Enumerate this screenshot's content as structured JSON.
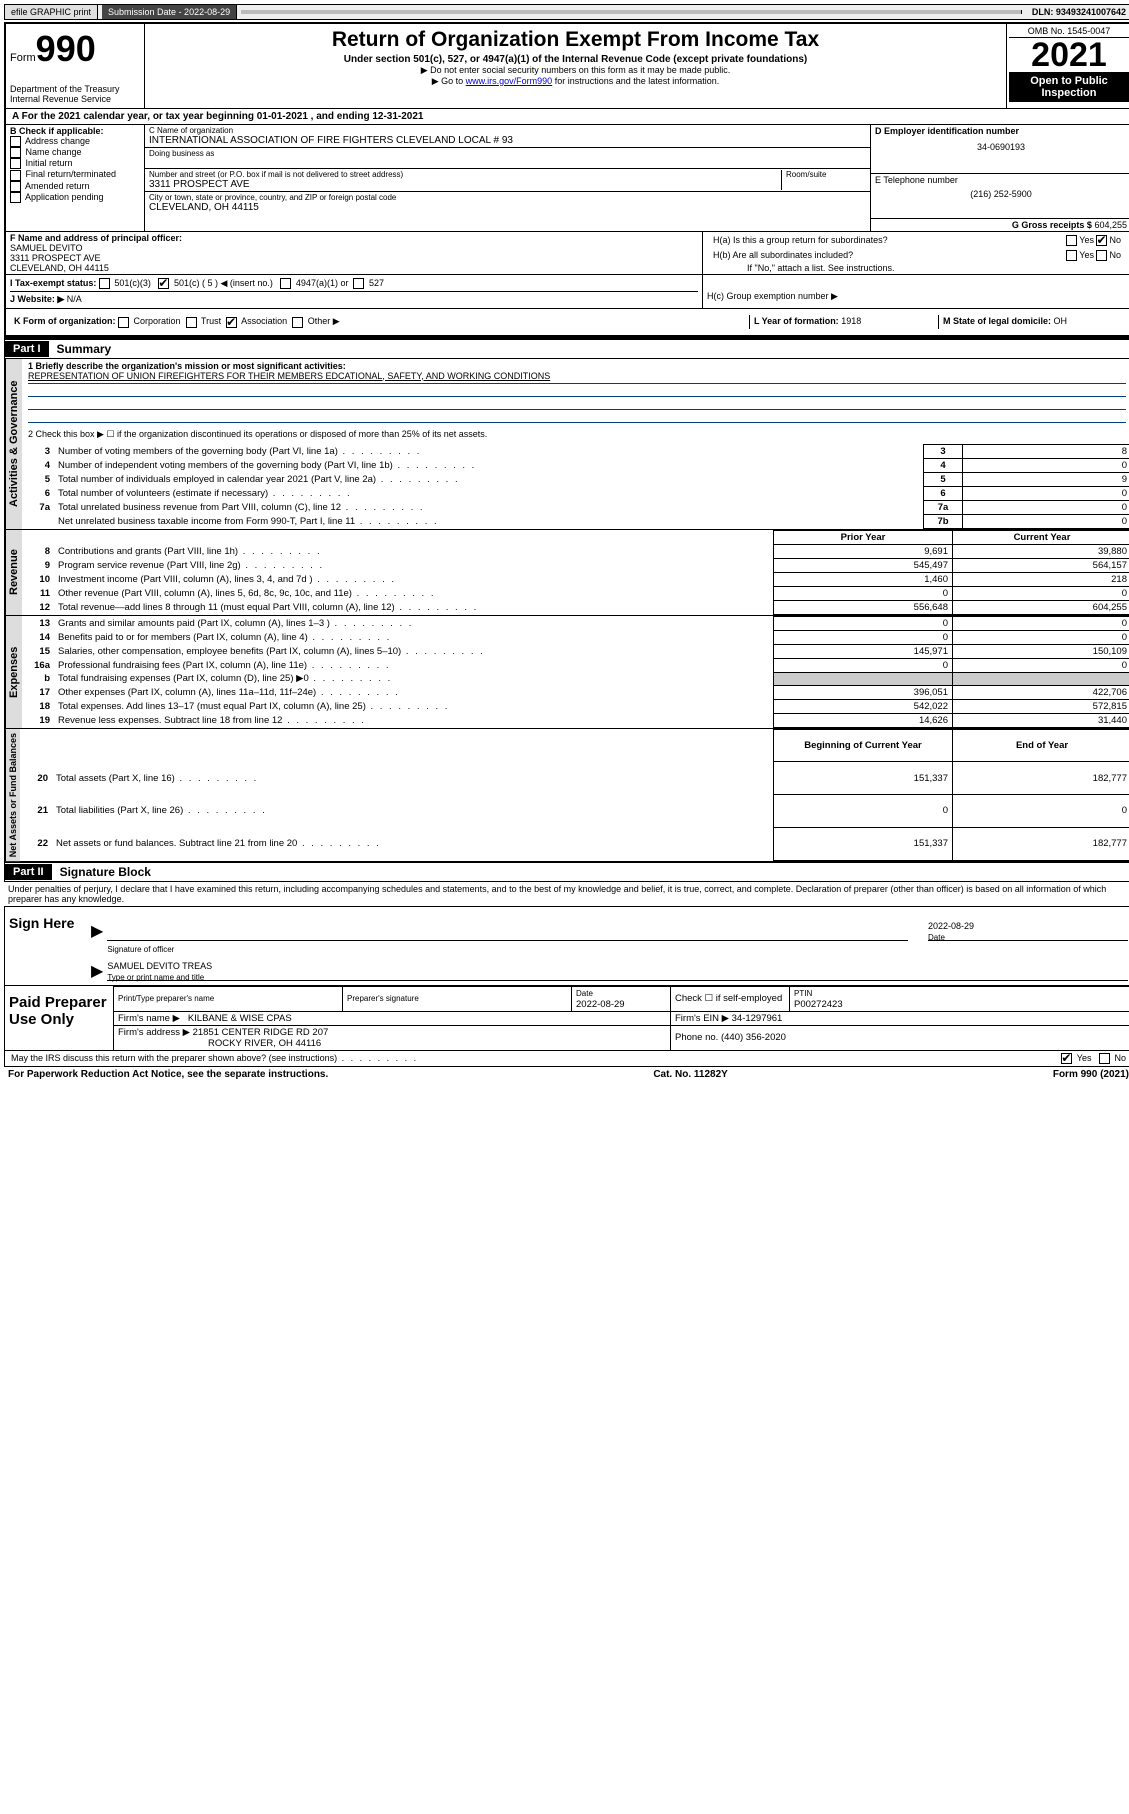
{
  "topbar": {
    "efile": "efile GRAPHIC print",
    "submission_label": "Submission Date - 2022-08-29",
    "dln": "DLN: 93493241007642"
  },
  "header": {
    "form_prefix": "Form",
    "form_number": "990",
    "dept": "Department of the Treasury",
    "irs": "Internal Revenue Service",
    "title": "Return of Organization Exempt From Income Tax",
    "subtitle": "Under section 501(c), 527, or 4947(a)(1) of the Internal Revenue Code (except private foundations)",
    "note1": "▶ Do not enter social security numbers on this form as it may be made public.",
    "note2_pre": "▶ Go to ",
    "note2_link": "www.irs.gov/Form990",
    "note2_post": " for instructions and the latest information.",
    "omb": "OMB No. 1545-0047",
    "year": "2021",
    "open": "Open to Public Inspection"
  },
  "line_a": "For the 2021 calendar year, or tax year beginning 01-01-2021   , and ending 12-31-2021",
  "section_b": {
    "header": "B Check if applicable:",
    "items": [
      "Address change",
      "Name change",
      "Initial return",
      "Final return/terminated",
      "Amended return",
      "Application pending"
    ]
  },
  "section_c": {
    "name_label": "C Name of organization",
    "name": "INTERNATIONAL ASSOCIATION OF FIRE FIGHTERS CLEVELAND LOCAL # 93",
    "dba_label": "Doing business as",
    "addr_label": "Number and street (or P.O. box if mail is not delivered to street address)",
    "room_label": "Room/suite",
    "addr": "3311 PROSPECT AVE",
    "city_label": "City or town, state or province, country, and ZIP or foreign postal code",
    "city": "CLEVELAND, OH  44115"
  },
  "section_d": {
    "ein_label": "D Employer identification number",
    "ein": "34-0690193",
    "phone_label": "E Telephone number",
    "phone": "(216) 252-5900",
    "gross_label": "G Gross receipts $",
    "gross": "604,255"
  },
  "section_f": {
    "label": "F  Name and address of principal officer:",
    "name": "SAMUEL DEVITO",
    "addr1": "3311 PROSPECT AVE",
    "addr2": "CLEVELAND, OH  44115"
  },
  "section_h": {
    "ha": "H(a)  Is this a group return for subordinates?",
    "hb": "H(b)  Are all subordinates included?",
    "hb_note": "If \"No,\" attach a list. See instructions.",
    "hc": "H(c)  Group exemption number ▶",
    "yes": "Yes",
    "no": "No"
  },
  "line_i": {
    "label": "I   Tax-exempt status:",
    "o1": "501(c)(3)",
    "o2": "501(c) ( 5 ) ◀ (insert no.)",
    "o3": "4947(a)(1) or",
    "o4": "527"
  },
  "line_j": {
    "label": "J   Website: ▶",
    "val": "N/A"
  },
  "line_k": {
    "label": "K Form of organization:",
    "o1": "Corporation",
    "o2": "Trust",
    "o3": "Association",
    "o4": "Other ▶"
  },
  "line_l": {
    "label": "L Year of formation:",
    "val": "1918"
  },
  "line_m": {
    "label": "M State of legal domicile:",
    "val": "OH"
  },
  "part1": {
    "header": "Part I",
    "title": "Summary",
    "q1_label": "1  Briefly describe the organization's mission or most significant activities:",
    "q1_val": "REPRESENTATION OF UNION FIREFIGHTERS FOR THEIR MEMBERS EDCATIONAL, SAFETY, AND WORKING CONDITIONS",
    "q2": "2   Check this box ▶ ☐  if the organization discontinued its operations or disposed of more than 25% of its net assets.",
    "governance_label": "Activities & Governance",
    "revenue_label": "Revenue",
    "expenses_label": "Expenses",
    "netassets_label": "Net Assets or Fund Balances",
    "prior_year": "Prior Year",
    "current_year": "Current Year",
    "begin_year": "Beginning of Current Year",
    "end_year": "End of Year",
    "rows_gov": [
      {
        "n": "3",
        "d": "Number of voting members of the governing body (Part VI, line 1a)",
        "box": "3",
        "v": "8"
      },
      {
        "n": "4",
        "d": "Number of independent voting members of the governing body (Part VI, line 1b)",
        "box": "4",
        "v": "0"
      },
      {
        "n": "5",
        "d": "Total number of individuals employed in calendar year 2021 (Part V, line 2a)",
        "box": "5",
        "v": "9"
      },
      {
        "n": "6",
        "d": "Total number of volunteers (estimate if necessary)",
        "box": "6",
        "v": "0"
      },
      {
        "n": "7a",
        "d": "Total unrelated business revenue from Part VIII, column (C), line 12",
        "box": "7a",
        "v": "0"
      },
      {
        "n": "",
        "d": "Net unrelated business taxable income from Form 990-T, Part I, line 11",
        "box": "7b",
        "v": "0"
      }
    ],
    "rows_rev": [
      {
        "n": "8",
        "d": "Contributions and grants (Part VIII, line 1h)",
        "p": "9,691",
        "c": "39,880"
      },
      {
        "n": "9",
        "d": "Program service revenue (Part VIII, line 2g)",
        "p": "545,497",
        "c": "564,157"
      },
      {
        "n": "10",
        "d": "Investment income (Part VIII, column (A), lines 3, 4, and 7d )",
        "p": "1,460",
        "c": "218"
      },
      {
        "n": "11",
        "d": "Other revenue (Part VIII, column (A), lines 5, 6d, 8c, 9c, 10c, and 11e)",
        "p": "0",
        "c": "0"
      },
      {
        "n": "12",
        "d": "Total revenue—add lines 8 through 11 (must equal Part VIII, column (A), line 12)",
        "p": "556,648",
        "c": "604,255"
      }
    ],
    "rows_exp": [
      {
        "n": "13",
        "d": "Grants and similar amounts paid (Part IX, column (A), lines 1–3 )",
        "p": "0",
        "c": "0"
      },
      {
        "n": "14",
        "d": "Benefits paid to or for members (Part IX, column (A), line 4)",
        "p": "0",
        "c": "0"
      },
      {
        "n": "15",
        "d": "Salaries, other compensation, employee benefits (Part IX, column (A), lines 5–10)",
        "p": "145,971",
        "c": "150,109"
      },
      {
        "n": "16a",
        "d": "Professional fundraising fees (Part IX, column (A), line 11e)",
        "p": "0",
        "c": "0"
      },
      {
        "n": "b",
        "d": "Total fundraising expenses (Part IX, column (D), line 25) ▶0",
        "p": "",
        "c": "",
        "shade": true
      },
      {
        "n": "17",
        "d": "Other expenses (Part IX, column (A), lines 11a–11d, 11f–24e)",
        "p": "396,051",
        "c": "422,706"
      },
      {
        "n": "18",
        "d": "Total expenses. Add lines 13–17 (must equal Part IX, column (A), line 25)",
        "p": "542,022",
        "c": "572,815"
      },
      {
        "n": "19",
        "d": "Revenue less expenses. Subtract line 18 from line 12",
        "p": "14,626",
        "c": "31,440"
      }
    ],
    "rows_net": [
      {
        "n": "20",
        "d": "Total assets (Part X, line 16)",
        "p": "151,337",
        "c": "182,777"
      },
      {
        "n": "21",
        "d": "Total liabilities (Part X, line 26)",
        "p": "0",
        "c": "0"
      },
      {
        "n": "22",
        "d": "Net assets or fund balances. Subtract line 21 from line 20",
        "p": "151,337",
        "c": "182,777"
      }
    ]
  },
  "part2": {
    "header": "Part II",
    "title": "Signature Block",
    "decl": "Under penalties of perjury, I declare that I have examined this return, including accompanying schedules and statements, and to the best of my knowledge and belief, it is true, correct, and complete. Declaration of preparer (other than officer) is based on all information of which preparer has any knowledge.",
    "sign_here": "Sign Here",
    "sig_officer": "Signature of officer",
    "sig_date": "Date",
    "sig_date_val": "2022-08-29",
    "officer_name": "SAMUEL DEVITO TREAS",
    "officer_name_label": "Type or print name and title",
    "paid_prep": "Paid Preparer Use Only",
    "pp_name_label": "Print/Type preparer's name",
    "pp_sig_label": "Preparer's signature",
    "pp_date_label": "Date",
    "pp_date": "2022-08-29",
    "pp_check": "Check ☐ if self-employed",
    "ptin_label": "PTIN",
    "ptin": "P00272423",
    "firm_name_label": "Firm's name    ▶",
    "firm_name": "KILBANE & WISE CPAS",
    "firm_ein_label": "Firm's EIN ▶",
    "firm_ein": "34-1297961",
    "firm_addr_label": "Firm's address ▶",
    "firm_addr1": "21851 CENTER RIDGE RD 207",
    "firm_addr2": "ROCKY RIVER, OH  44116",
    "firm_phone_label": "Phone no.",
    "firm_phone": "(440) 356-2020",
    "may_irs": "May the IRS discuss this return with the preparer shown above? (see instructions)",
    "yes": "Yes",
    "no": "No"
  },
  "footer": {
    "left": "For Paperwork Reduction Act Notice, see the separate instructions.",
    "mid": "Cat. No. 11282Y",
    "right": "Form 990 (2021)"
  }
}
